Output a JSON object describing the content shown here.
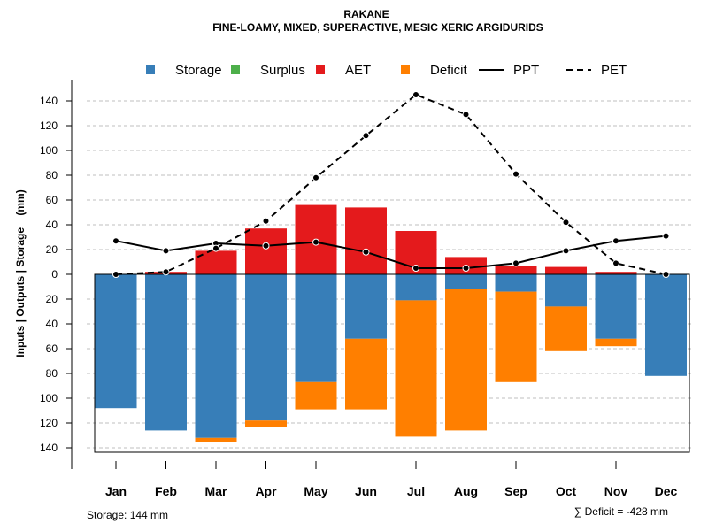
{
  "chart_data": {
    "type": "bar",
    "title": "RAKANE",
    "subtitle": "FINE-LOAMY, MIXED, SUPERACTIVE, MESIC XERIC ARGIDURIDS",
    "ylabel": "Inputs | Outputs | Storage    (mm)",
    "ylim": [
      -144,
      155
    ],
    "yticks": [
      140,
      120,
      100,
      80,
      60,
      40,
      20,
      0,
      20,
      40,
      60,
      80,
      100,
      120,
      140
    ],
    "ytick_values": [
      140,
      120,
      100,
      80,
      60,
      40,
      20,
      0,
      -20,
      -40,
      -60,
      -80,
      -100,
      -120,
      -140
    ],
    "categories": [
      "Jan",
      "Feb",
      "Mar",
      "Apr",
      "May",
      "Jun",
      "Jul",
      "Aug",
      "Sep",
      "Oct",
      "Nov",
      "Dec"
    ],
    "legend": [
      {
        "label": "Storage",
        "kind": "box",
        "color": "#377eb8"
      },
      {
        "label": "Surplus",
        "kind": "box",
        "color": "#4daf4a"
      },
      {
        "label": "AET",
        "kind": "box",
        "color": "#e41a1c"
      },
      {
        "label": "Deficit",
        "kind": "box",
        "color": "#ff7f00"
      },
      {
        "label": "PPT",
        "kind": "solid",
        "color": "#000000"
      },
      {
        "label": "PET",
        "kind": "dashed",
        "color": "#000000"
      }
    ],
    "series": [
      {
        "name": "AET",
        "values": [
          0,
          2,
          19,
          37,
          56,
          54,
          35,
          14,
          7,
          6,
          2,
          0
        ]
      },
      {
        "name": "Storage",
        "values": [
          108,
          126,
          132,
          118,
          87,
          52,
          21,
          12,
          14,
          26,
          52,
          82
        ]
      },
      {
        "name": "Deficit",
        "values": [
          0,
          0,
          3,
          5,
          22,
          57,
          110,
          114,
          73,
          36,
          6,
          0
        ]
      },
      {
        "name": "Surplus",
        "values": [
          0,
          0,
          0,
          0,
          0,
          0,
          0,
          0,
          0,
          0,
          0,
          0
        ]
      },
      {
        "name": "PPT",
        "values": [
          27,
          19,
          25,
          23,
          26,
          18,
          5,
          5,
          9,
          19,
          27,
          31
        ]
      },
      {
        "name": "PET",
        "values": [
          0,
          2,
          21,
          43,
          78,
          112,
          145,
          129,
          81,
          42,
          9,
          0
        ]
      }
    ],
    "colors": {
      "storage": "#377eb8",
      "surplus": "#4daf4a",
      "aet": "#e41a1c",
      "deficit": "#ff7f00",
      "grid": "#bfbfbf"
    }
  },
  "footer": {
    "storage": "Storage: 144 mm",
    "deficit": "∑ Deficit = -428 mm"
  }
}
